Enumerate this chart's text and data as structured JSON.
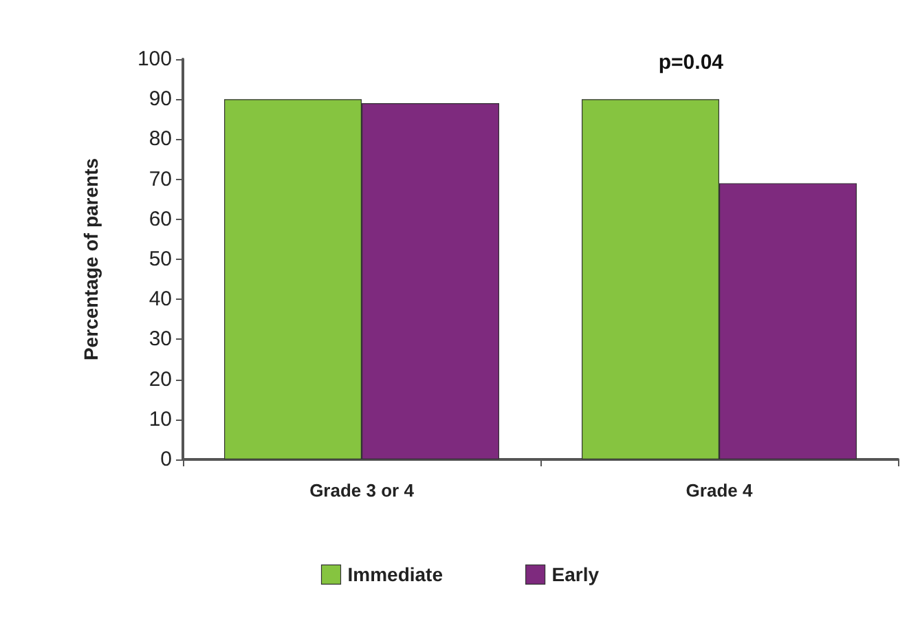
{
  "chart_data": {
    "type": "bar",
    "ylabel": "Percentage of parents",
    "categories": [
      "Grade 3 or 4",
      "Grade 4"
    ],
    "series": [
      {
        "name": "Immediate",
        "color": "#86c440",
        "values": [
          90,
          90
        ]
      },
      {
        "name": "Early",
        "color": "#7e2a7e",
        "values": [
          89,
          69
        ]
      }
    ],
    "ylim": [
      0,
      100
    ],
    "yticks": [
      0,
      10,
      20,
      30,
      40,
      50,
      60,
      70,
      80,
      90,
      100
    ],
    "grid": false,
    "legend": "bottom",
    "annotations": [
      "p=0.04"
    ]
  }
}
